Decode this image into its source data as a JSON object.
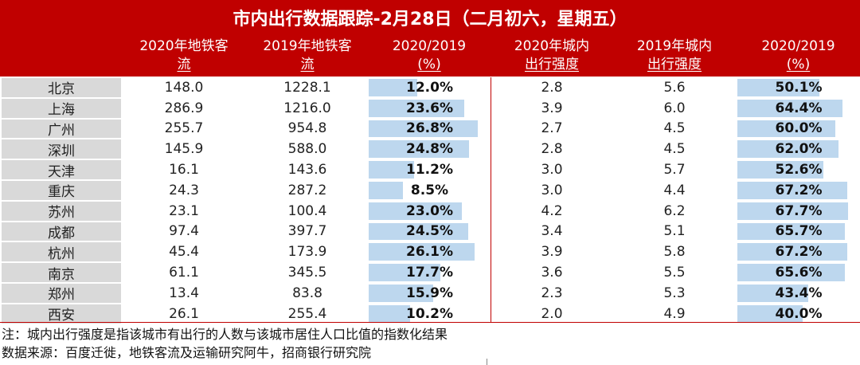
{
  "title": "市内出行数据跟踪-2月28日（二月初六，星期五）",
  "headers": [
    {
      "l1": "2020年地铁客",
      "l2": "流"
    },
    {
      "l1": "2019年地铁客",
      "l2": "流"
    },
    {
      "l1": "2020/2019",
      "l2": "(%)"
    },
    {
      "l1": "2020年城内",
      "l2": "出行强度"
    },
    {
      "l1": "2019年城内",
      "l2": "出行强度"
    },
    {
      "l1": "2020/2019",
      "l2": "(%)"
    }
  ],
  "rows": [
    {
      "city": "北京",
      "m2020": "148.0",
      "m2019": "1228.1",
      "mratio": "12.0%",
      "mratio_v": 12.0,
      "t2020": "2.8",
      "t2019": "5.6",
      "tratio": "50.1%",
      "tratio_v": 50.1
    },
    {
      "city": "上海",
      "m2020": "286.9",
      "m2019": "1216.0",
      "mratio": "23.6%",
      "mratio_v": 23.6,
      "t2020": "3.9",
      "t2019": "6.0",
      "tratio": "64.4%",
      "tratio_v": 64.4
    },
    {
      "city": "广州",
      "m2020": "255.7",
      "m2019": "954.8",
      "mratio": "26.8%",
      "mratio_v": 26.8,
      "t2020": "2.7",
      "t2019": "4.5",
      "tratio": "60.0%",
      "tratio_v": 60.0
    },
    {
      "city": "深圳",
      "m2020": "145.9",
      "m2019": "588.0",
      "mratio": "24.8%",
      "mratio_v": 24.8,
      "t2020": "2.8",
      "t2019": "4.5",
      "tratio": "62.0%",
      "tratio_v": 62.0
    },
    {
      "city": "天津",
      "m2020": "16.1",
      "m2019": "143.6",
      "mratio": "11.2%",
      "mratio_v": 11.2,
      "t2020": "3.0",
      "t2019": "5.7",
      "tratio": "52.6%",
      "tratio_v": 52.6
    },
    {
      "city": "重庆",
      "m2020": "24.3",
      "m2019": "287.2",
      "mratio": "8.5%",
      "mratio_v": 8.5,
      "t2020": "3.0",
      "t2019": "4.4",
      "tratio": "67.2%",
      "tratio_v": 67.2
    },
    {
      "city": "苏州",
      "m2020": "23.1",
      "m2019": "100.4",
      "mratio": "23.0%",
      "mratio_v": 23.0,
      "t2020": "4.2",
      "t2019": "6.2",
      "tratio": "67.7%",
      "tratio_v": 67.7
    },
    {
      "city": "成都",
      "m2020": "97.4",
      "m2019": "397.7",
      "mratio": "24.5%",
      "mratio_v": 24.5,
      "t2020": "3.4",
      "t2019": "5.1",
      "tratio": "65.7%",
      "tratio_v": 65.7
    },
    {
      "city": "杭州",
      "m2020": "45.4",
      "m2019": "173.9",
      "mratio": "26.1%",
      "mratio_v": 26.1,
      "t2020": "3.9",
      "t2019": "5.8",
      "tratio": "67.2%",
      "tratio_v": 67.2
    },
    {
      "city": "南京",
      "m2020": "61.1",
      "m2019": "345.5",
      "mratio": "17.7%",
      "mratio_v": 17.7,
      "t2020": "3.6",
      "t2019": "5.5",
      "tratio": "65.6%",
      "tratio_v": 65.6
    },
    {
      "city": "郑州",
      "m2020": "13.4",
      "m2019": "83.8",
      "mratio": "15.9%",
      "mratio_v": 15.9,
      "t2020": "2.3",
      "t2019": "5.3",
      "tratio": "43.4%",
      "tratio_v": 43.4
    },
    {
      "city": "西安",
      "m2020": "26.1",
      "m2019": "255.4",
      "mratio": "10.2%",
      "mratio_v": 10.2,
      "t2020": "2.0",
      "t2019": "4.9",
      "tratio": "40.0%",
      "tratio_v": 40.0
    }
  ],
  "notes": {
    "note": "注：城内出行强度是指该城市有出行的人数与该城市居住人口比值的指数化结果",
    "source": "数据来源：百度迁徙，地铁客流及运输研究阿牛，招商银行研究院"
  },
  "colors": {
    "header_bg": "#c00000",
    "bar": "#bdd7ee",
    "city_bg": "#d9d9d9"
  }
}
